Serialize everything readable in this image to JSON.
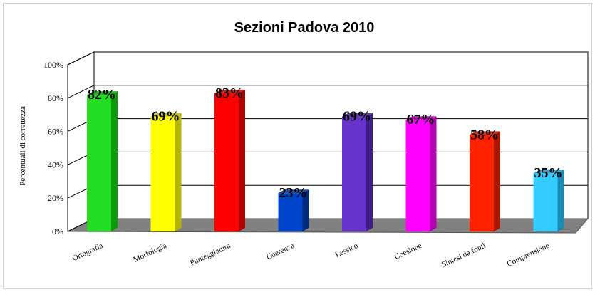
{
  "chart_data": {
    "type": "bar",
    "title": "Sezioni Padova 2010",
    "ylabel": "Percentuali di correttezza",
    "xlabel": "",
    "ylim": [
      0,
      100
    ],
    "yticks": [
      0,
      20,
      40,
      60,
      80,
      100
    ],
    "ytick_labels": [
      "0%",
      "20%",
      "40%",
      "60%",
      "80%",
      "100%"
    ],
    "grid": true,
    "style": "3d-columns",
    "categories": [
      "Ortografia",
      "Morfologia",
      "Punteggiatura",
      "Coerenza",
      "Lessico",
      "Coesione",
      "Sintesi da fonti",
      "Comprensione"
    ],
    "values": [
      82,
      69,
      83,
      23,
      69,
      67,
      58,
      35
    ],
    "data_labels": [
      "82%",
      "69%",
      "83%",
      "23%",
      "69%",
      "67%",
      "58%",
      "35%"
    ],
    "colors": [
      "#22dd22",
      "#ffff00",
      "#ff0000",
      "#0044cc",
      "#6633cc",
      "#ff00ff",
      "#ff2200",
      "#33ccff"
    ],
    "side_colors": [
      "#0a9a0a",
      "#b5b500",
      "#b00000",
      "#002a80",
      "#3f1f86",
      "#b000b0",
      "#a81600",
      "#1a8db5"
    ]
  }
}
